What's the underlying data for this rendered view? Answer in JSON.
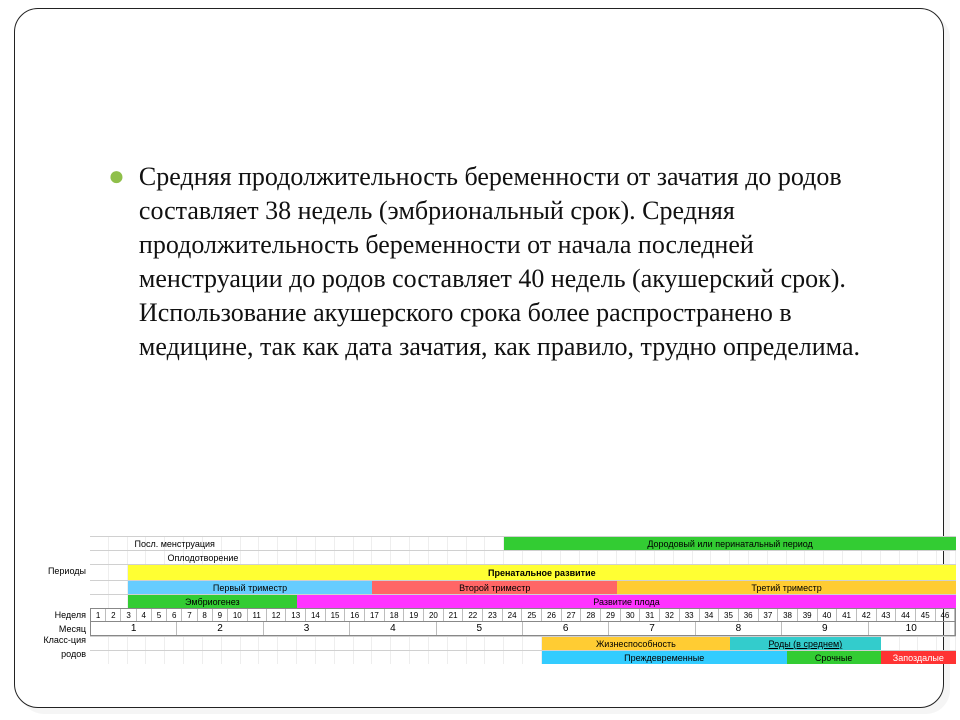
{
  "bullet_text": "Средняя продолжительность беременности от зачатия до родов составляет 38 недель (эмбриональный срок). Средняя продолжительность беременности от начала последней менструации до родов составляет 40 недель (акушерский срок). Использование акушерского срока более распространено в медицине, так как дата зачатия, как правило, трудно определима.",
  "bullet_color": "#8fbf4a",
  "chart": {
    "total_units": 46,
    "labels": {
      "periods": "Периоды",
      "weeks": "Неделя",
      "months": "Месяц",
      "class1": "Класс-ция",
      "class2": "родов"
    },
    "row_last_menstr": {
      "text": "Посл. менструация",
      "start": 0,
      "span": 9,
      "color": "transparent",
      "textcolor": "#000"
    },
    "row_perinatal": {
      "text": "Дородовый или перинатальный период",
      "start": 22,
      "span": 24,
      "color": "#33cc33",
      "textcolor": "#000"
    },
    "row_fertilization": {
      "text": "Оплодотворение",
      "start": 2,
      "span": 8,
      "color": "transparent",
      "textcolor": "#000"
    },
    "row_prenatal": {
      "text": "Пренатальное развитие",
      "start": 2,
      "span": 44,
      "color": "#ffff33",
      "textcolor": "#000",
      "bold": true
    },
    "trimesters": [
      {
        "text": "Первый триместр",
        "start": 2,
        "span": 13,
        "color": "#66ccff"
      },
      {
        "text": "Второй триместр",
        "start": 15,
        "span": 13,
        "color": "#ff6666"
      },
      {
        "text": "Третий триместр",
        "start": 28,
        "span": 18,
        "color": "#ffcc33"
      }
    ],
    "dev": [
      {
        "text": "Эмбриогенез",
        "start": 2,
        "span": 9,
        "color": "#33cc33"
      },
      {
        "text": "Развитие плода",
        "start": 11,
        "span": 35,
        "color": "#ff33ff"
      }
    ],
    "weeks": [
      "1",
      "2",
      "3",
      "4",
      "5",
      "6",
      "7",
      "8",
      "9",
      "10",
      "11",
      "12",
      "13",
      "14",
      "15",
      "16",
      "17",
      "18",
      "19",
      "20",
      "21",
      "22",
      "23",
      "24",
      "25",
      "26",
      "27",
      "28",
      "29",
      "30",
      "31",
      "32",
      "33",
      "34",
      "35",
      "36",
      "37",
      "38",
      "39",
      "40",
      "41",
      "42",
      "43",
      "44",
      "45",
      "46"
    ],
    "months": [
      "1",
      "2",
      "3",
      "4",
      "5",
      "6",
      "7",
      "8",
      "9",
      "10"
    ],
    "viability": {
      "text": "Жизнеспособность",
      "start": 24,
      "span": 10,
      "color": "#ffcc33"
    },
    "births_avg": {
      "text": "Роды (в среднем)",
      "start": 34,
      "span": 8,
      "color": "#33cccc"
    },
    "class_row": [
      {
        "text": "Преждевременные",
        "start": 24,
        "span": 13,
        "color": "#33ccff"
      },
      {
        "text": "Срочные",
        "start": 37,
        "span": 5,
        "color": "#33cc33"
      },
      {
        "text": "Запоздалые",
        "start": 42,
        "span": 4,
        "color": "#ff3333",
        "textcolor": "#fff"
      }
    ]
  }
}
